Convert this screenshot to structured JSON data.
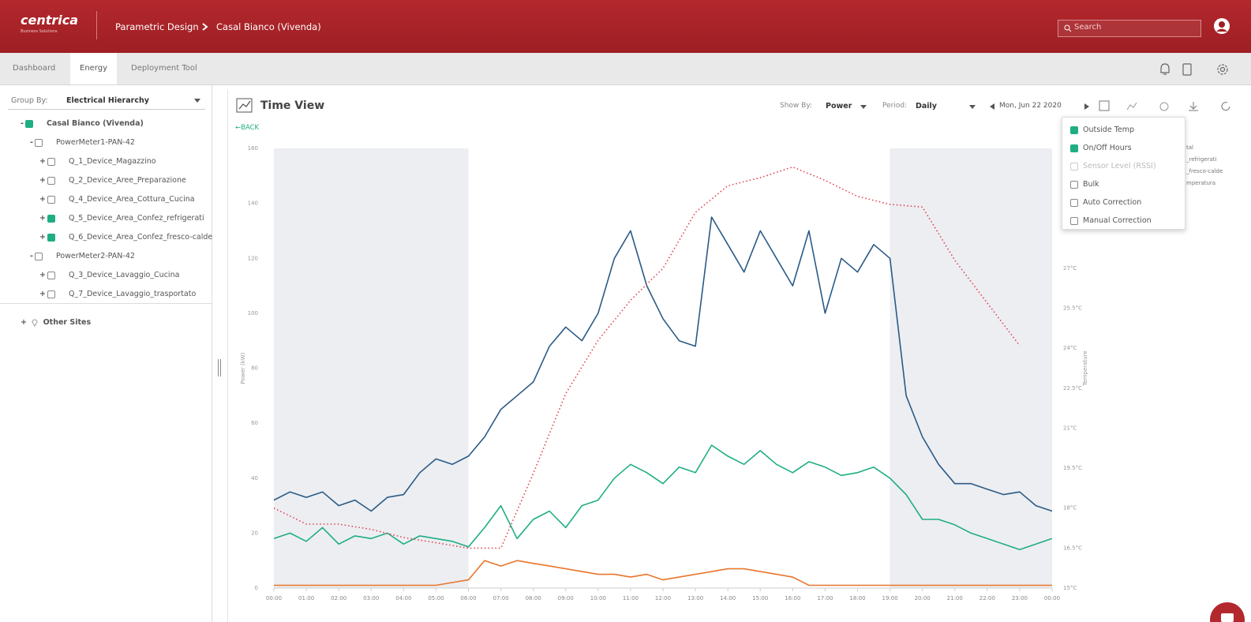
{
  "header": {
    "brand": "centrica",
    "brand_sub": "Business Solutions",
    "breadcrumb": [
      "Parametric Design",
      "Casal Bianco (Vivenda)"
    ],
    "search": "Search"
  },
  "tabs": [
    "Dashboard",
    "Energy",
    "Deployment Tool"
  ],
  "sidebar": {
    "group_by_label": "Group By:",
    "group_by": "Electrical Hierarchy",
    "tree": [
      {
        "sign": "-",
        "label": "Casal Bianco (Vivenda)",
        "level": 0,
        "checked": true
      },
      {
        "sign": "-",
        "label": "PowerMeter1-PAN-42",
        "level": 1,
        "checked": false
      },
      {
        "sign": "+",
        "label": "Q_1_Device_Magazzino",
        "level": 2,
        "checked": false
      },
      {
        "sign": "+",
        "label": "Q_2_Device_Aree_Preparazione",
        "level": 2,
        "checked": false
      },
      {
        "sign": "+",
        "label": "Q_4_Device_Area_Cottura_Cucina",
        "level": 2,
        "checked": false
      },
      {
        "sign": "+",
        "label": "Q_5_Device_Area_Confez_refrigerati",
        "level": 2,
        "checked": true
      },
      {
        "sign": "+",
        "label": "Q_6_Device_Area_Confez_fresco-calde",
        "level": 2,
        "checked": true
      },
      {
        "sign": "-",
        "label": "PowerMeter2-PAN-42",
        "level": 1,
        "checked": false
      },
      {
        "sign": "+",
        "label": "Q_3_Device_Lavaggio_Cucina",
        "level": 2,
        "checked": false
      },
      {
        "sign": "+",
        "label": "Q_7_Device_Lavaggio_trasportato",
        "level": 2,
        "checked": false
      }
    ],
    "other_sites_sign": "+",
    "other_sites": "Other Sites"
  },
  "toolbar": {
    "back": "←BACK",
    "show_by_label": "Show By:",
    "show_by": "Power",
    "period_label": "Period:",
    "period": "Daily",
    "date": "Mon, Jun 22 2020"
  },
  "menu": [
    {
      "label": "Outside Temp",
      "checked": true,
      "disabled": false
    },
    {
      "label": "On/Off Hours",
      "checked": true,
      "disabled": false
    },
    {
      "label": "Sensor Level (RSSI)",
      "checked": false,
      "disabled": true
    },
    {
      "label": "Bulk",
      "checked": false,
      "disabled": false
    },
    {
      "label": "Auto Correction",
      "checked": false,
      "disabled": false
    },
    {
      "label": "Manual Correction",
      "checked": false,
      "disabled": false
    }
  ],
  "chart_data": {
    "type": "line",
    "title": "Time View",
    "y_label": "Power (kW)",
    "y2_label": "Temperature",
    "xlim": [
      0,
      24
    ],
    "xticks": [
      {
        "value": 0,
        "label": "00:00"
      },
      {
        "value": 1,
        "label": "01:00"
      },
      {
        "value": 2,
        "label": "02:00"
      },
      {
        "value": 3,
        "label": "03:00"
      },
      {
        "value": 4,
        "label": "04:00"
      },
      {
        "value": 5,
        "label": "05:00"
      },
      {
        "value": 6,
        "label": "06:00"
      },
      {
        "value": 7,
        "label": "07:00"
      },
      {
        "value": 8,
        "label": "08:00"
      },
      {
        "value": 9,
        "label": "09:00"
      },
      {
        "value": 10,
        "label": "10:00"
      },
      {
        "value": 11,
        "label": "11:00"
      },
      {
        "value": 12,
        "label": "12:00"
      },
      {
        "value": 13,
        "label": "13:00"
      },
      {
        "value": 14,
        "label": "14:00"
      },
      {
        "value": 15,
        "label": "15:00"
      },
      {
        "value": 16,
        "label": "16:00"
      },
      {
        "value": 17,
        "label": "17:00"
      },
      {
        "value": 18,
        "label": "18:00"
      },
      {
        "value": 19,
        "label": "19:00"
      },
      {
        "value": 20,
        "label": "20:00"
      },
      {
        "value": 21,
        "label": "21:00"
      },
      {
        "value": 22,
        "label": "22:00"
      },
      {
        "value": 23,
        "label": "23:00"
      },
      {
        "value": 24,
        "label": "00:00"
      }
    ],
    "ylim": [
      0,
      160
    ],
    "yticks": [
      0,
      20,
      40,
      60,
      80,
      100,
      120,
      140,
      160
    ],
    "y2lim": [
      15,
      31.5
    ],
    "y2ticks": [
      {
        "value": 15,
        "label": "15°C"
      },
      {
        "value": 16.5,
        "label": "16.5°C"
      },
      {
        "value": 18,
        "label": "18°C"
      },
      {
        "value": 19.5,
        "label": "19.5°C"
      },
      {
        "value": 21,
        "label": "21°C"
      },
      {
        "value": 22.5,
        "label": "22.5°C"
      },
      {
        "value": 24,
        "label": "24°C"
      },
      {
        "value": 25.5,
        "label": "25.5°C"
      },
      {
        "value": 27,
        "label": "27°C"
      }
    ],
    "off_hours": [
      [
        0,
        6
      ],
      [
        19,
        24
      ]
    ],
    "off_hours_color": "#eceef2",
    "x": [
      0,
      0.5,
      1,
      1.5,
      2,
      2.5,
      3,
      3.5,
      4,
      4.5,
      5,
      5.5,
      6,
      6.5,
      7,
      7.5,
      8,
      8.5,
      9,
      9.5,
      10,
      10.5,
      11,
      11.5,
      12,
      12.5,
      13,
      13.5,
      14,
      14.5,
      15,
      15.5,
      16,
      16.5,
      17,
      17.5,
      18,
      18.5,
      19,
      19.5,
      20,
      20.5,
      21,
      21.5,
      22,
      22.5,
      23,
      23.5,
      24
    ],
    "series": [
      {
        "name": "tal",
        "color": "#2b5a85",
        "dashed": false,
        "values": [
          32,
          35,
          33,
          35,
          30,
          32,
          28,
          33,
          34,
          42,
          47,
          45,
          48,
          55,
          65,
          70,
          75,
          88,
          95,
          90,
          100,
          120,
          130,
          110,
          98,
          90,
          88,
          135,
          125,
          115,
          130,
          120,
          110,
          130,
          100,
          120,
          115,
          125,
          120,
          70,
          55,
          45,
          38,
          38,
          36,
          34,
          35,
          30,
          28
        ]
      },
      {
        "name": "_refrigerati",
        "color": "#1fae84",
        "dashed": false,
        "values": [
          18,
          20,
          17,
          22,
          16,
          19,
          18,
          20,
          16,
          19,
          18,
          17,
          15,
          22,
          30,
          18,
          25,
          28,
          22,
          30,
          32,
          40,
          45,
          42,
          38,
          44,
          42,
          52,
          48,
          45,
          50,
          45,
          42,
          46,
          44,
          41,
          42,
          44,
          40,
          34,
          25,
          25,
          23,
          20,
          18,
          16,
          14,
          16,
          18
        ]
      },
      {
        "name": "_fresco-calde",
        "color": "#e8762c",
        "dashed": false,
        "values": [
          1,
          1,
          1,
          1,
          1,
          1,
          1,
          1,
          1,
          1,
          1,
          2,
          3,
          10,
          8,
          10,
          9,
          8,
          7,
          6,
          5,
          5,
          4,
          5,
          3,
          4,
          5,
          6,
          7,
          7,
          6,
          5,
          4,
          1,
          1,
          1,
          1,
          1,
          1,
          1,
          1,
          1,
          1,
          1,
          1,
          1,
          1,
          1,
          1
        ]
      },
      {
        "name": "mperatura",
        "color": "#e0424f",
        "dashed": true,
        "axis": "y2",
        "x": [
          0,
          1,
          2,
          3,
          4,
          5,
          6,
          7,
          8,
          9,
          10,
          11,
          12,
          13,
          14,
          15,
          16,
          17,
          18,
          19,
          20,
          21,
          22,
          23
        ],
        "values": [
          18,
          17.4,
          17.4,
          17.2,
          16.9,
          16.7,
          16.5,
          16.5,
          19.3,
          22.3,
          24.3,
          25.8,
          27,
          29.1,
          30.1,
          30.4,
          30.8,
          30.3,
          29.7,
          29.4,
          29.3,
          27.3,
          25.7,
          24.1
        ]
      }
    ]
  }
}
